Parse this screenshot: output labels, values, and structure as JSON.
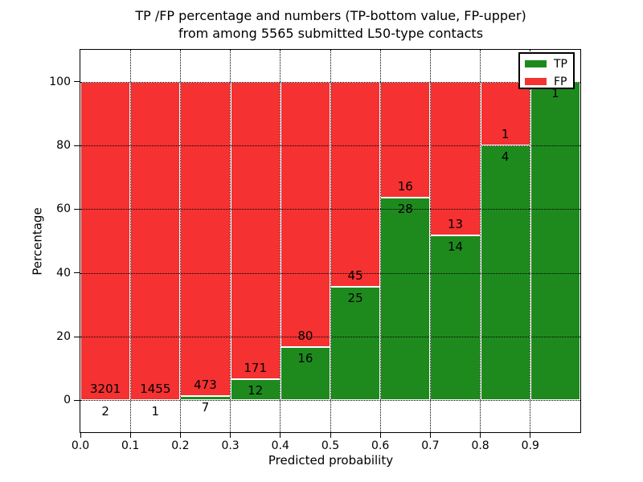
{
  "chart_data": {
    "type": "bar",
    "stacking": "percentage",
    "title_line1": "TP /FP percentage and numbers (TP-bottom value, FP-upper)",
    "title_line2": "from among 5565 submitted L50-type contacts",
    "xlabel": "Predicted probability",
    "ylabel": "Percentage",
    "total_contacts": 5565,
    "categories": [
      "0.0-0.1",
      "0.1-0.2",
      "0.2-0.3",
      "0.3-0.4",
      "0.4-0.5",
      "0.5-0.6",
      "0.6-0.7",
      "0.7-0.8",
      "0.8-0.9",
      "0.9-1.0"
    ],
    "series": [
      {
        "name": "TP",
        "color": "#1e8a1e",
        "values": [
          2,
          1,
          7,
          12,
          16,
          25,
          28,
          14,
          4,
          1
        ]
      },
      {
        "name": "FP",
        "color": "#f53131",
        "values": [
          3201,
          1455,
          473,
          171,
          80,
          45,
          16,
          13,
          1,
          0
        ]
      }
    ],
    "tp_percent": [
      0.06,
      0.07,
      1.46,
      6.56,
      16.67,
      35.71,
      63.64,
      51.85,
      80.0,
      100.0
    ],
    "x_tick_labels": [
      "0.0",
      "0.1",
      "0.2",
      "0.3",
      "0.4",
      "0.5",
      "0.6",
      "0.7",
      "0.8",
      "0.9"
    ],
    "y_tick_values": [
      0,
      20,
      40,
      60,
      80,
      100
    ],
    "xlim": [
      0.0,
      1.0
    ],
    "ylim": [
      -10,
      110
    ],
    "grid": "dotted black, white dashed over bars",
    "legend_position": "upper right",
    "axis_color": "#000000",
    "background_color": "#ffffff"
  }
}
